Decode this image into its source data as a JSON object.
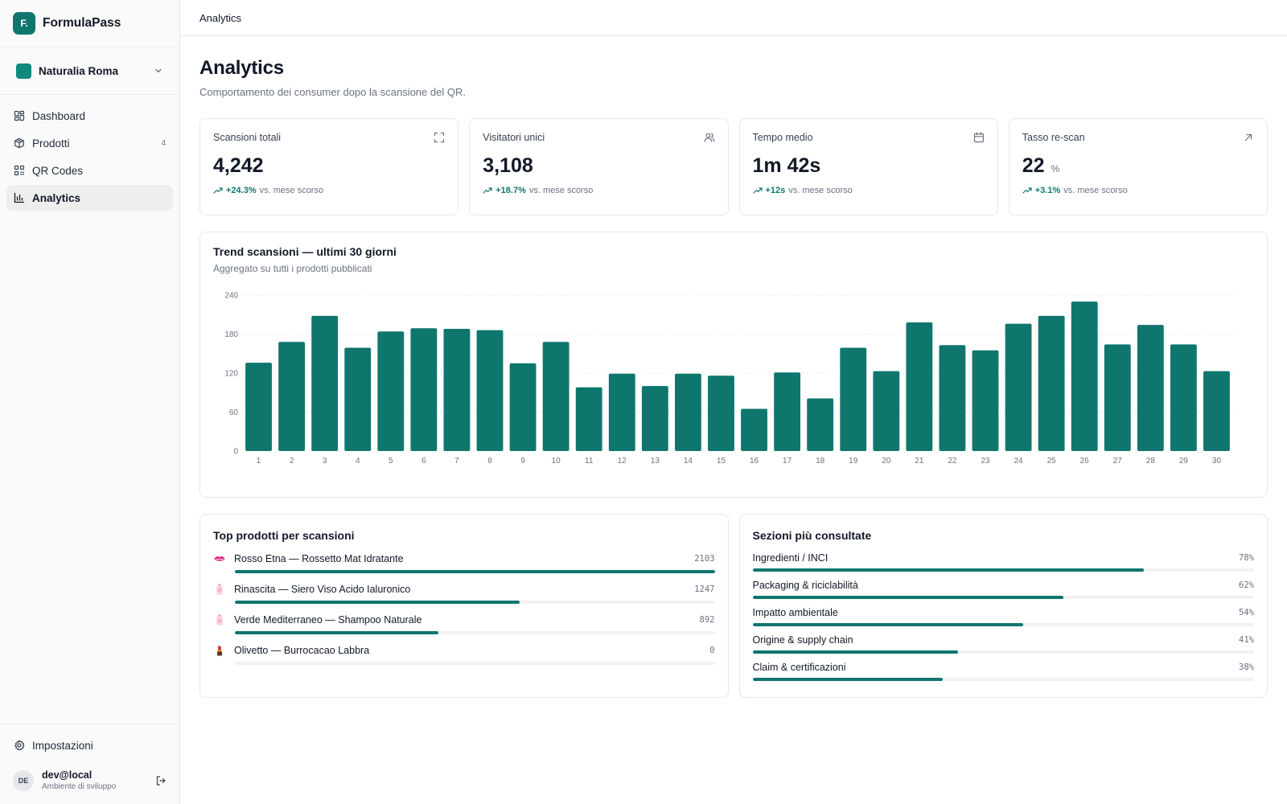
{
  "brand": {
    "logo_text": "F.",
    "name": "FormulaPass"
  },
  "org": {
    "name": "Naturalia Roma"
  },
  "nav": [
    {
      "label": "Dashboard",
      "icon": "dashboard-icon",
      "count": ""
    },
    {
      "label": "Prodotti",
      "icon": "box-icon",
      "count": "4"
    },
    {
      "label": "QR Codes",
      "icon": "qr-icon",
      "count": ""
    },
    {
      "label": "Analytics",
      "icon": "bar-chart-icon",
      "count": "",
      "active": true
    }
  ],
  "settings": {
    "label": "Impostazioni"
  },
  "user": {
    "initials": "DE",
    "name": "dev@local",
    "env": "Ambiente di sviluppo"
  },
  "topbar": {
    "breadcrumb": "Analytics"
  },
  "page": {
    "title": "Analytics",
    "subtitle": "Comportamento dei consumer dopo la scansione del QR."
  },
  "kpis": [
    {
      "label": "Scansioni totali",
      "value": "4,242",
      "unit": "",
      "delta": "+24.3%",
      "delta_text": "vs. mese scorso",
      "icon": "scan-icon"
    },
    {
      "label": "Visitatori unici",
      "value": "3,108",
      "unit": "",
      "delta": "+18.7%",
      "delta_text": "vs. mese scorso",
      "icon": "users-icon"
    },
    {
      "label": "Tempo medio",
      "value": "1m 42s",
      "unit": "",
      "delta": "+12s",
      "delta_text": "vs. mese scorso",
      "icon": "calendar-icon"
    },
    {
      "label": "Tasso re-scan",
      "value": "22",
      "unit": "%",
      "delta": "+3.1%",
      "delta_text": "vs. mese scorso",
      "icon": "arrow-up-right-icon"
    }
  ],
  "chart_data": {
    "type": "bar",
    "title": "Trend scansioni — ultimi 30 giorni",
    "subtitle": "Aggregato su tutti i prodotti pubblicati",
    "categories": [
      "1",
      "2",
      "3",
      "4",
      "5",
      "6",
      "7",
      "8",
      "9",
      "10",
      "11",
      "12",
      "13",
      "14",
      "15",
      "16",
      "17",
      "18",
      "19",
      "20",
      "21",
      "22",
      "23",
      "24",
      "25",
      "26",
      "27",
      "28",
      "29",
      "30"
    ],
    "values": [
      136,
      168,
      208,
      159,
      184,
      189,
      188,
      186,
      135,
      168,
      98,
      119,
      100,
      119,
      116,
      65,
      121,
      81,
      159,
      123,
      198,
      163,
      155,
      196,
      208,
      230,
      164,
      194,
      164,
      123
    ],
    "yticks": [
      0,
      60,
      120,
      180,
      240
    ],
    "ylim": [
      0,
      240
    ],
    "grid": true,
    "color": "#0f766e"
  },
  "top_products": {
    "title": "Top prodotti per scansioni",
    "items": [
      {
        "name": "Rosso Etna — Rossetto Mat Idratante",
        "count": "2103",
        "value": 2103,
        "icon": "lips-icon"
      },
      {
        "name": "Rinascita — Siero Viso Acido Ialuronico",
        "count": "1247",
        "value": 1247,
        "icon": "lotion-bottle-icon"
      },
      {
        "name": "Verde Mediterraneo — Shampoo Naturale",
        "count": "892",
        "value": 892,
        "icon": "lotion-bottle-icon"
      },
      {
        "name": "Olivetto — Burrocacao Labbra",
        "count": "0",
        "value": 0,
        "icon": "lipstick-icon"
      }
    ]
  },
  "sections": {
    "title": "Sezioni più consultate",
    "items": [
      {
        "name": "Ingredienti / INCI",
        "pct": "78%",
        "value": 78
      },
      {
        "name": "Packaging & riciclabilità",
        "pct": "62%",
        "value": 62
      },
      {
        "name": "Impatto ambientale",
        "pct": "54%",
        "value": 54
      },
      {
        "name": "Origine & supply chain",
        "pct": "41%",
        "value": 41
      },
      {
        "name": "Claim & certificazioni",
        "pct": "38%",
        "value": 38
      }
    ]
  },
  "colors": {
    "accent": "#0f766e",
    "brand": "#0f766e"
  }
}
